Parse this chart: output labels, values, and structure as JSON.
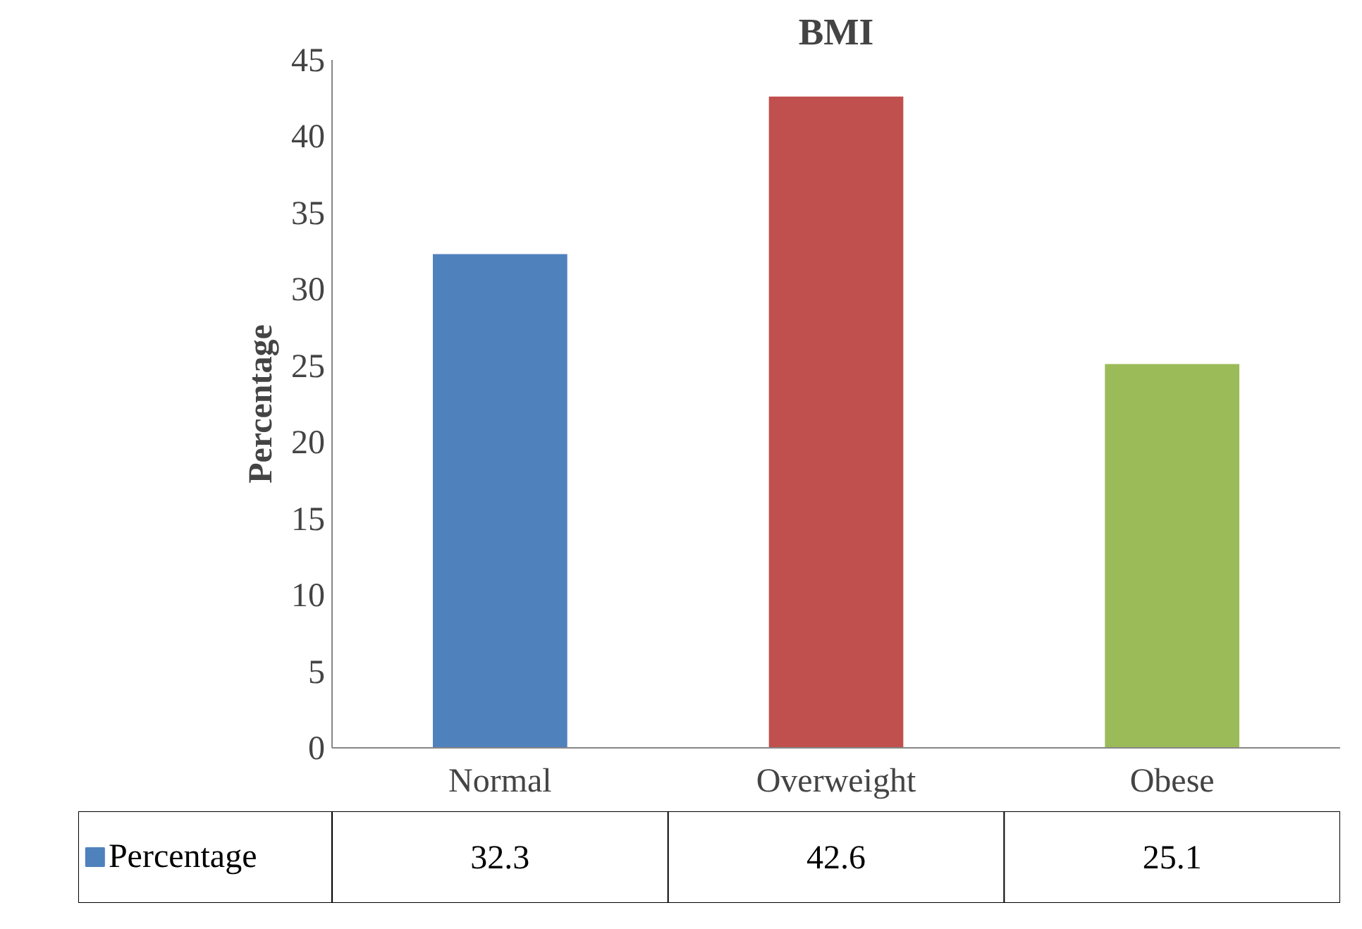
{
  "chart_data": {
    "type": "bar",
    "title": "BMI",
    "ylabel": "Percentage",
    "categories": [
      "Normal",
      "Overweight",
      "Obese"
    ],
    "series": [
      {
        "name": "Percentage",
        "colors": [
          "#4f81bd",
          "#c0504d",
          "#9bbb59"
        ],
        "values": [
          32.3,
          42.6,
          25.1
        ]
      }
    ],
    "ylim": [
      0,
      45
    ],
    "yticks": [
      0,
      5,
      10,
      15,
      20,
      25,
      30,
      35,
      40,
      45
    ],
    "grid": false,
    "legend": "bottom",
    "data_labels": true
  }
}
